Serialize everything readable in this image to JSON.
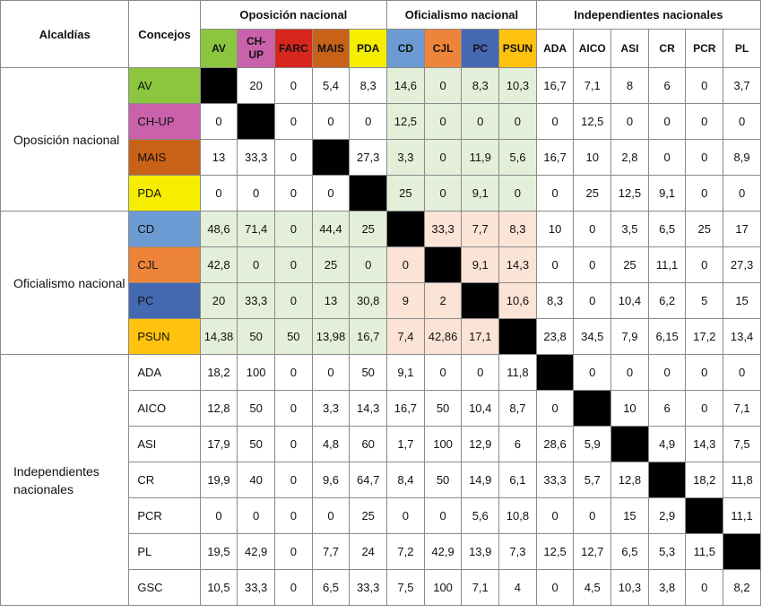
{
  "header": {
    "row_title": "Alcaldías",
    "col_title": "Concejos",
    "groups": [
      {
        "label": "Oposición nacional",
        "cols": [
          "AV",
          "CH-\nUP",
          "FARC",
          "MAIS",
          "PDA"
        ]
      },
      {
        "label": "Oficialismo nacional",
        "cols": [
          "CD",
          "CJL",
          "PC",
          "PSUN"
        ]
      },
      {
        "label": "Independientes nacionales",
        "cols": [
          "ADA",
          "AICO",
          "ASI",
          "CR",
          "PCR",
          "PL"
        ]
      }
    ]
  },
  "colors": {
    "AV": "#8cc63f",
    "CH-UP": "#c961ab",
    "FARC": "#d7261e",
    "MAIS": "#c86219",
    "PDA": "#f5ee00",
    "CD": "#6b9bd2",
    "CJL": "#ee8439",
    "PC": "#4469b1",
    "PSUN": "#ffc20e",
    "black": "#000000",
    "pink": "#fbe3d6",
    "green": "#e3efd9"
  },
  "groups": [
    {
      "label": "Oposición nacional",
      "rows": [
        {
          "label": "AV",
          "values": [
            "",
            "20",
            "0",
            "5,4",
            "8,3",
            "14,6",
            "0",
            "8,3",
            "10,3",
            "16,7",
            "7,1",
            "8",
            "6",
            "0",
            "3,7"
          ]
        },
        {
          "label": "CH-UP",
          "values": [
            "0",
            "",
            "0",
            "0",
            "0",
            "12,5",
            "0",
            "0",
            "0",
            "0",
            "12,5",
            "0",
            "0",
            "0",
            "0"
          ]
        },
        {
          "label": "MAIS",
          "values": [
            "13",
            "33,3",
            "0",
            "",
            "27,3",
            "3,3",
            "0",
            "11,9",
            "5,6",
            "16,7",
            "10",
            "2,8",
            "0",
            "0",
            "8,9"
          ]
        },
        {
          "label": "PDA",
          "values": [
            "0",
            "0",
            "0",
            "0",
            "",
            "25",
            "0",
            "9,1",
            "0",
            "0",
            "25",
            "12,5",
            "9,1",
            "0",
            "0"
          ]
        }
      ]
    },
    {
      "label": "Oficialismo nacional",
      "rows": [
        {
          "label": "CD",
          "values": [
            "48,6",
            "71,4",
            "0",
            "44,4",
            "25",
            "",
            "33,3",
            "7,7",
            "8,3",
            "10",
            "0",
            "3,5",
            "6,5",
            "25",
            "17"
          ]
        },
        {
          "label": "CJL",
          "values": [
            "42,8",
            "0",
            "0",
            "25",
            "0",
            "0",
            "",
            "9,1",
            "14,3",
            "0",
            "0",
            "25",
            "11,1",
            "0",
            "27,3"
          ]
        },
        {
          "label": "PC",
          "values": [
            "20",
            "33,3",
            "0",
            "13",
            "30,8",
            "9",
            "2",
            "",
            "10,6",
            "8,3",
            "0",
            "10,4",
            "6,2",
            "5",
            "15"
          ]
        },
        {
          "label": "PSUN",
          "values": [
            "14,38",
            "50",
            "50",
            "13,98",
            "16,7",
            "7,4",
            "42,86",
            "17,1",
            "",
            "23,8",
            "34,5",
            "7,9",
            "6,15",
            "17,2",
            "13,4"
          ]
        }
      ]
    },
    {
      "label": "Independientes nacionales",
      "rows": [
        {
          "label": "ADA",
          "values": [
            "18,2",
            "100",
            "0",
            "0",
            "50",
            "9,1",
            "0",
            "0",
            "11,8",
            "",
            "0",
            "0",
            "0",
            "0",
            "0"
          ]
        },
        {
          "label": "AICO",
          "values": [
            "12,8",
            "50",
            "0",
            "3,3",
            "14,3",
            "16,7",
            "50",
            "10,4",
            "8,7",
            "0",
            "",
            "10",
            "6",
            "0",
            "7,1"
          ]
        },
        {
          "label": "ASI",
          "values": [
            "17,9",
            "50",
            "0",
            "4,8",
            "60",
            "1,7",
            "100",
            "12,9",
            "6",
            "28,6",
            "5,9",
            "",
            "4,9",
            "14,3",
            "7,5"
          ]
        },
        {
          "label": "CR",
          "values": [
            "19,9",
            "40",
            "0",
            "9,6",
            "64,7",
            "8,4",
            "50",
            "14,9",
            "6,1",
            "33,3",
            "5,7",
            "12,8",
            "",
            "18,2",
            "11,8"
          ]
        },
        {
          "label": "PCR",
          "values": [
            "0",
            "0",
            "0",
            "0",
            "25",
            "0",
            "0",
            "5,6",
            "10,8",
            "0",
            "0",
            "15",
            "2,9",
            "",
            "11,1"
          ]
        },
        {
          "label": "PL",
          "values": [
            "19,5",
            "42,9",
            "0",
            "7,7",
            "24",
            "7,2",
            "42,9",
            "13,9",
            "7,3",
            "12,5",
            "12,7",
            "6,5",
            "5,3",
            "11,5",
            ""
          ]
        },
        {
          "label": "GSC",
          "values": [
            "10,5",
            "33,3",
            "0",
            "6,5",
            "33,3",
            "7,5",
            "100",
            "7,1",
            "4",
            "0",
            "4,5",
            "10,3",
            "3,8",
            "0",
            "8,2"
          ]
        }
      ]
    }
  ],
  "black_cells": [
    [
      0,
      0
    ],
    [
      1,
      1
    ],
    [
      2,
      3
    ],
    [
      3,
      4
    ],
    [
      4,
      5
    ],
    [
      5,
      6
    ],
    [
      6,
      7
    ],
    [
      7,
      8
    ],
    [
      8,
      9
    ],
    [
      9,
      10
    ],
    [
      10,
      11
    ],
    [
      11,
      12
    ],
    [
      12,
      13
    ],
    [
      13,
      14
    ]
  ]
}
